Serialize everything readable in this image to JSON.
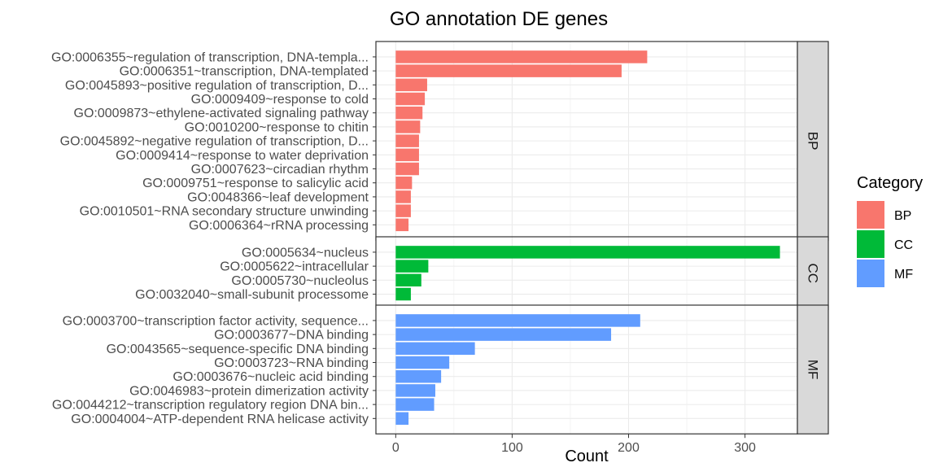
{
  "chart_data": {
    "type": "bar",
    "orientation": "horizontal",
    "title": "GO annotation DE genes",
    "xlabel": "Count",
    "xlim": [
      -17,
      345
    ],
    "xticks": [
      0,
      100,
      200,
      300
    ],
    "grid": true,
    "legend": {
      "title": "Category",
      "placement": "right",
      "entries": [
        {
          "label": "BP",
          "color": "#F8766D"
        },
        {
          "label": "CC",
          "color": "#00BA38"
        },
        {
          "label": "MF",
          "color": "#619CFF"
        }
      ]
    },
    "facets": [
      {
        "name": "BP",
        "color": "#F8766D",
        "categories": [
          "GO:0006355~regulation of transcription, DNA-templa...",
          "GO:0006351~transcription, DNA-templated",
          "GO:0045893~positive regulation of transcription, D...",
          "GO:0009409~response to cold",
          "GO:0009873~ethylene-activated signaling pathway",
          "GO:0010200~response to chitin",
          "GO:0045892~negative regulation of transcription, D...",
          "GO:0009414~response to water deprivation",
          "GO:0007623~circadian rhythm",
          "GO:0009751~response to salicylic acid",
          "GO:0048366~leaf development",
          "GO:0010501~RNA secondary structure unwinding",
          "GO:0006364~rRNA processing"
        ],
        "values": [
          216,
          194,
          27,
          25,
          23,
          21,
          20,
          20,
          20,
          14,
          13,
          13,
          11
        ]
      },
      {
        "name": "CC",
        "color": "#00BA38",
        "categories": [
          "GO:0005634~nucleus",
          "GO:0005622~intracellular",
          "GO:0005730~nucleolus",
          "GO:0032040~small-subunit processome"
        ],
        "values": [
          330,
          28,
          22,
          13
        ]
      },
      {
        "name": "MF",
        "color": "#619CFF",
        "categories": [
          "GO:0003700~transcription factor activity, sequence...",
          "GO:0003677~DNA binding",
          "GO:0043565~sequence-specific DNA binding",
          "GO:0003723~RNA binding",
          "GO:0003676~nucleic acid binding",
          "GO:0046983~protein dimerization activity",
          "GO:0044212~transcription regulatory region DNA bin...",
          "GO:0004004~ATP-dependent RNA helicase activity"
        ],
        "values": [
          210,
          185,
          68,
          46,
          39,
          34,
          33,
          11
        ]
      }
    ]
  }
}
